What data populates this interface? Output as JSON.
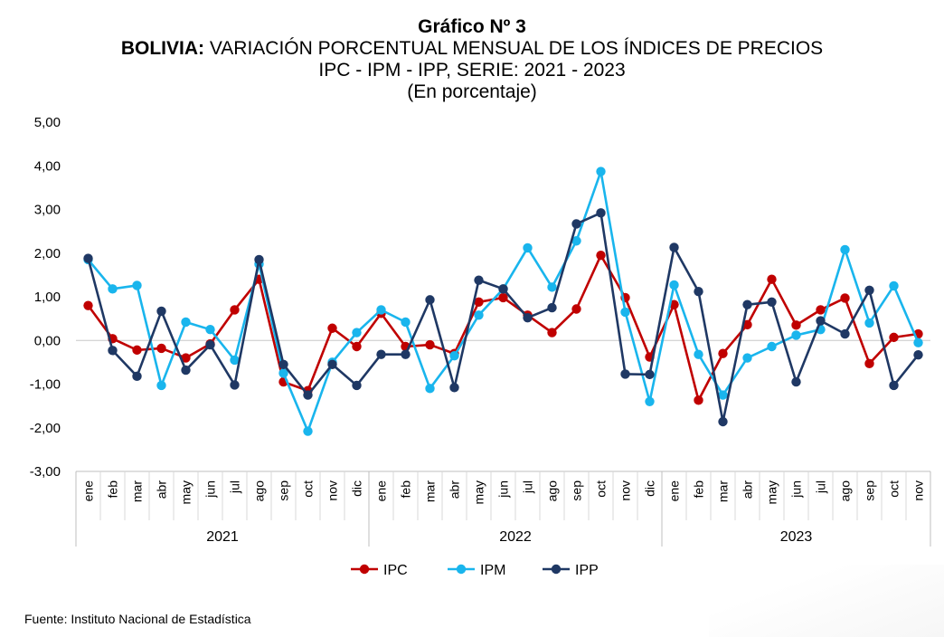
{
  "header": {
    "title": "Gráfico Nº 3",
    "subtitle_bold": "BOLIVIA:",
    "subtitle_rest": " VARIACIÓN PORCENTUAL MENSUAL DE LOS ÍNDICES DE PRECIOS",
    "subtitle2": "IPC - IPM - IPP, SERIE: 2021 - 2023",
    "unit": "(En porcentaje)"
  },
  "footer": {
    "source": "Fuente: Instituto Nacional de Estadística"
  },
  "chart_data": {
    "type": "line",
    "ylim": [
      -3,
      5
    ],
    "yticks": [
      "-3,00",
      "-2,00",
      "-1,00",
      "0,00",
      "1,00",
      "2,00",
      "3,00",
      "4,00",
      "5,00"
    ],
    "x": [
      "ene",
      "feb",
      "mar",
      "abr",
      "may",
      "jun",
      "jul",
      "ago",
      "sep",
      "oct",
      "nov",
      "dic",
      "ene",
      "feb",
      "mar",
      "abr",
      "may",
      "jun",
      "jul",
      "ago",
      "sep",
      "oct",
      "nov",
      "dic",
      "ene",
      "feb",
      "mar",
      "abr",
      "may",
      "jun",
      "jul",
      "ago",
      "sep",
      "oct",
      "nov"
    ],
    "years": [
      {
        "label": "2021",
        "count": 12
      },
      {
        "label": "2022",
        "count": 12
      },
      {
        "label": "2023",
        "count": 11
      }
    ],
    "legend_position": "bottom",
    "grid": false,
    "series": [
      {
        "name": "IPC",
        "color": "#c00000",
        "values": [
          0.8,
          0.04,
          -0.22,
          -0.18,
          -0.4,
          -0.08,
          0.7,
          1.4,
          -0.95,
          -1.15,
          0.28,
          -0.14,
          0.62,
          -0.14,
          -0.1,
          -0.3,
          0.88,
          0.98,
          0.58,
          0.18,
          0.72,
          1.95,
          0.98,
          -0.38,
          0.82,
          -1.37,
          -0.3,
          0.36,
          1.4,
          0.35,
          0.7,
          0.97,
          -0.53,
          0.07,
          0.15
        ]
      },
      {
        "name": "IPM",
        "color": "#19b5ed",
        "values": [
          1.85,
          1.18,
          1.26,
          -1.03,
          0.42,
          0.25,
          -0.45,
          1.75,
          -0.75,
          -2.08,
          -0.5,
          0.18,
          0.7,
          0.42,
          -1.1,
          -0.35,
          0.58,
          1.18,
          2.12,
          1.22,
          2.28,
          3.87,
          0.65,
          -1.4,
          1.27,
          -0.32,
          -1.25,
          -0.4,
          -0.14,
          0.12,
          0.25,
          2.08,
          0.4,
          1.25,
          -0.05
        ]
      },
      {
        "name": "IPP",
        "color": "#1f3864",
        "values": [
          1.88,
          -0.23,
          -0.82,
          0.67,
          -0.68,
          -0.1,
          -1.02,
          1.85,
          -0.55,
          -1.25,
          -0.55,
          -1.03,
          -0.32,
          -0.32,
          0.93,
          -1.08,
          1.38,
          1.18,
          0.52,
          0.75,
          2.67,
          2.92,
          -0.77,
          -0.78,
          2.13,
          1.12,
          -1.86,
          0.82,
          0.88,
          -0.95,
          0.45,
          0.15,
          1.15,
          -1.03,
          -0.33
        ]
      }
    ]
  }
}
